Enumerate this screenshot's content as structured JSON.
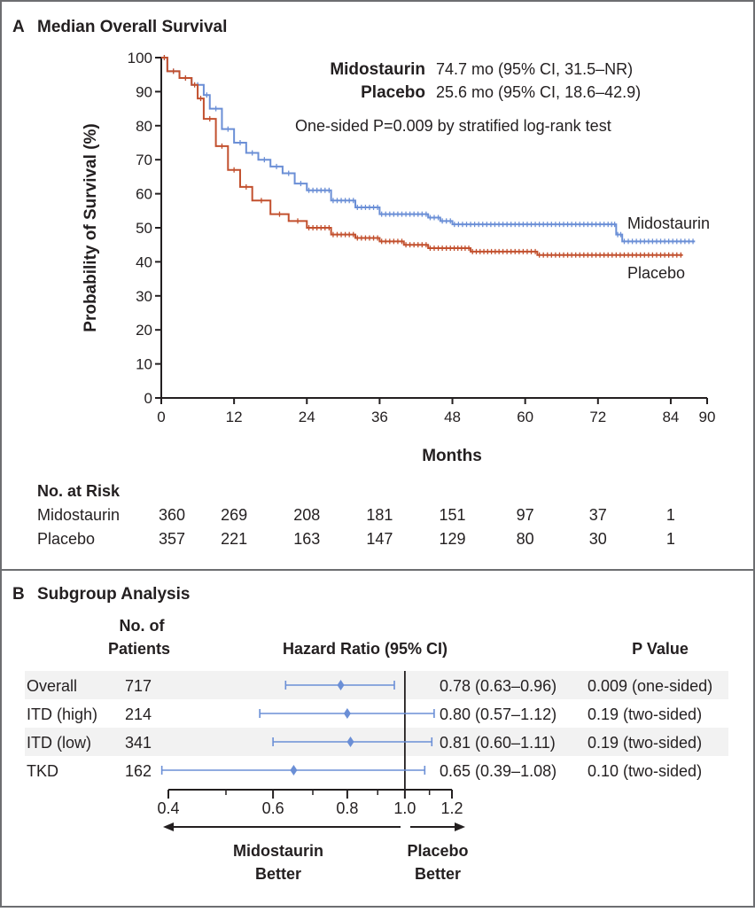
{
  "colors": {
    "midostaurin": "#6b8fd6",
    "placebo": "#c2502e",
    "axis": "#231f20",
    "row_shade": "#f2f2f2",
    "border": "#6d6e71"
  },
  "chart_data": [
    {
      "type": "line",
      "panel_letter": "A",
      "title": "Median Overall Survival",
      "xlabel": "Months",
      "ylabel": "Probability of Survival (%)",
      "xlim": [
        0,
        90
      ],
      "ylim": [
        0,
        100
      ],
      "xticks": [
        0,
        12,
        24,
        36,
        48,
        60,
        72,
        84,
        90
      ],
      "yticks": [
        0,
        10,
        20,
        30,
        40,
        50,
        60,
        70,
        80,
        90,
        100
      ],
      "step": true,
      "censor_marks": true,
      "annotations": {
        "median_rows": [
          {
            "label": "Midostaurin",
            "value": "74.7 mo (95% CI, 31.5–NR)"
          },
          {
            "label": "Placebo",
            "value": "25.6 mo (95% CI, 18.6–42.9)"
          }
        ],
        "p_text": "One-sided P=0.009 by stratified log-rank test"
      },
      "series": [
        {
          "name": "Midostaurin",
          "color": "#6b8fd6",
          "x": [
            0,
            1,
            3,
            5,
            7,
            8,
            10,
            12,
            14,
            16,
            18,
            20,
            22,
            24,
            28,
            32,
            36,
            40,
            44,
            46,
            48,
            52,
            60,
            70,
            74,
            75,
            76,
            88
          ],
          "y": [
            100,
            96,
            94,
            92,
            89,
            85,
            79,
            75,
            72,
            70,
            68,
            66,
            63,
            61,
            58,
            56,
            54,
            54,
            53,
            52,
            51,
            51,
            51,
            51,
            51,
            48,
            46,
            46
          ]
        },
        {
          "name": "Placebo",
          "color": "#c2502e",
          "x": [
            0,
            1,
            3,
            5,
            6,
            7,
            9,
            11,
            13,
            15,
            18,
            21,
            24,
            28,
            32,
            36,
            40,
            44,
            48,
            51,
            56,
            62,
            70,
            86
          ],
          "y": [
            100,
            96,
            94,
            92,
            88,
            82,
            74,
            67,
            62,
            58,
            54,
            52,
            50,
            48,
            47,
            46,
            45,
            44,
            44,
            43,
            43,
            42,
            42,
            42
          ]
        }
      ],
      "risk_table": {
        "title": "No. at Risk",
        "times": [
          0,
          12,
          24,
          36,
          48,
          60,
          72,
          84
        ],
        "rows": [
          {
            "label": "Midostaurin",
            "values": [
              "360",
              "269",
              "208",
              "181",
              "151",
              "97",
              "37",
              "1"
            ]
          },
          {
            "label": "Placebo",
            "values": [
              "357",
              "221",
              "163",
              "147",
              "129",
              "80",
              "30",
              "1"
            ]
          }
        ]
      }
    },
    {
      "type": "forest",
      "panel_letter": "B",
      "title": "Subgroup Analysis",
      "columns": {
        "n_line1": "No. of",
        "n_line2": "Patients",
        "hr": "Hazard Ratio (95% CI)",
        "p": "P Value"
      },
      "x_scale": "log",
      "xlim": [
        0.4,
        1.2
      ],
      "xticks": [
        "0.4",
        "0.6",
        "0.8",
        "1.0",
        "1.2"
      ],
      "minor_ticks": [
        0.5,
        0.7,
        0.9,
        1.1
      ],
      "reference_line": 1.0,
      "rows": [
        {
          "label": "Overall",
          "n": "717",
          "hr": 0.78,
          "lo": 0.63,
          "hi": 0.96,
          "hr_text": "0.78 (0.63–0.96)",
          "p_text": "0.009 (one-sided)"
        },
        {
          "label": "ITD (high)",
          "n": "214",
          "hr": 0.8,
          "lo": 0.57,
          "hi": 1.12,
          "hr_text": "0.80 (0.57–1.12)",
          "p_text": "0.19 (two-sided)"
        },
        {
          "label": "ITD (low)",
          "n": "341",
          "hr": 0.81,
          "lo": 0.6,
          "hi": 1.11,
          "hr_text": "0.81 (0.60–1.11)",
          "p_text": "0.19 (two-sided)"
        },
        {
          "label": "TKD",
          "n": "162",
          "hr": 0.65,
          "lo": 0.39,
          "hi": 1.08,
          "hr_text": "0.65 (0.39–1.08)",
          "p_text": "0.10 (two-sided)"
        }
      ],
      "favors_left": [
        "Midostaurin",
        "Better"
      ],
      "favors_right": [
        "Placebo",
        "Better"
      ]
    }
  ]
}
